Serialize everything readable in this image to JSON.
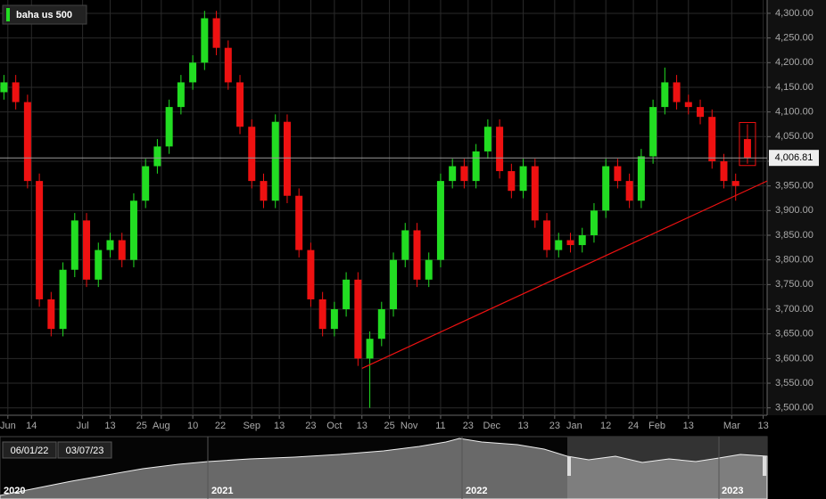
{
  "chart_data": {
    "type": "candlestick",
    "legend": "baha us 500",
    "up_color": "#22dd22",
    "down_color": "#ee1111",
    "x": [
      1,
      4,
      7,
      10,
      13,
      16,
      19,
      22,
      25,
      28,
      31,
      34,
      37,
      40,
      43,
      46,
      49,
      52,
      55,
      58,
      61,
      64,
      67,
      70,
      73,
      76,
      79,
      82,
      85,
      88,
      91,
      94,
      97,
      100,
      103,
      106,
      109,
      112,
      115,
      118,
      121,
      124,
      127,
      130,
      133,
      136,
      139,
      142,
      145,
      148,
      151,
      154,
      157,
      160,
      163,
      166,
      169,
      172,
      175,
      178,
      181,
      184,
      187,
      190
    ],
    "series": [
      {
        "name": "baha us 500",
        "open": [
          4140,
          4160,
          4120,
          3960,
          3720,
          3660,
          3780,
          3880,
          3760,
          3820,
          3840,
          3800,
          3920,
          3990,
          4030,
          4110,
          4160,
          4200,
          4290,
          4230,
          4160,
          4070,
          3960,
          3920,
          4080,
          3930,
          3820,
          3720,
          3660,
          3700,
          3760,
          3600,
          3640,
          3700,
          3800,
          3860,
          3760,
          3800,
          3960,
          3990,
          3960,
          4020,
          4070,
          3980,
          3940,
          3990,
          3880,
          3820,
          3840,
          3830,
          3850,
          3900,
          3990,
          3960,
          3920,
          4010,
          4110,
          4160,
          4120,
          4110,
          4090,
          4000,
          3960,
          4045
        ],
        "high": [
          4175,
          4175,
          4135,
          3975,
          3735,
          3795,
          3895,
          3895,
          3835,
          3855,
          3855,
          3935,
          4005,
          4045,
          4125,
          4175,
          4215,
          4305,
          4305,
          4245,
          4175,
          4085,
          3975,
          4095,
          4095,
          3945,
          3835,
          3735,
          3715,
          3775,
          3775,
          3655,
          3715,
          3815,
          3875,
          3875,
          3815,
          3975,
          4005,
          4005,
          4035,
          4085,
          4085,
          3995,
          4005,
          4005,
          3895,
          3855,
          3855,
          3865,
          3915,
          4005,
          4005,
          3975,
          4025,
          4125,
          4190,
          4175,
          4135,
          4125,
          4105,
          4015,
          3975,
          4075
        ],
        "low": [
          4125,
          4105,
          3945,
          3705,
          3645,
          3645,
          3765,
          3745,
          3745,
          3805,
          3785,
          3785,
          3905,
          3975,
          4015,
          4095,
          4145,
          4185,
          4215,
          4145,
          4055,
          3945,
          3905,
          3905,
          3915,
          3805,
          3705,
          3645,
          3645,
          3685,
          3585,
          3500,
          3625,
          3685,
          3785,
          3745,
          3745,
          3785,
          3945,
          3945,
          3945,
          4005,
          3965,
          3925,
          3925,
          3865,
          3805,
          3805,
          3815,
          3815,
          3835,
          3885,
          3945,
          3905,
          3905,
          3995,
          4095,
          4105,
          4095,
          4075,
          3985,
          3945,
          3920,
          3995
        ],
        "close": [
          4160,
          4120,
          3960,
          3720,
          3660,
          3780,
          3880,
          3760,
          3820,
          3840,
          3800,
          3920,
          3990,
          4030,
          4110,
          4160,
          4200,
          4290,
          4230,
          4160,
          4070,
          3960,
          3920,
          4080,
          3930,
          3820,
          3720,
          3660,
          3700,
          3760,
          3600,
          3640,
          3700,
          3800,
          3860,
          3760,
          3800,
          3960,
          3990,
          3960,
          4020,
          4070,
          3980,
          3940,
          3990,
          3880,
          3820,
          3840,
          3830,
          3850,
          3900,
          3990,
          3960,
          3920,
          4010,
          4110,
          4160,
          4120,
          4110,
          4090,
          4000,
          3960,
          3950,
          4007
        ]
      }
    ],
    "trendline": {
      "color": "#ee1111",
      "x": [
        92,
        195
      ],
      "y": [
        3580,
        3960
      ]
    },
    "last_price": {
      "value": 4006.81,
      "label": "4,006.81"
    },
    "xlim": [
      0,
      195
    ],
    "ylim": [
      3485,
      4327
    ],
    "grid": true,
    "xticks": [
      {
        "value": 2,
        "label": "Jun"
      },
      {
        "value": 8,
        "label": "14"
      },
      {
        "value": 21,
        "label": "Jul"
      },
      {
        "value": 28,
        "label": "13"
      },
      {
        "value": 36,
        "label": "25"
      },
      {
        "value": 41,
        "label": "Aug"
      },
      {
        "value": 49,
        "label": "10"
      },
      {
        "value": 56,
        "label": "22"
      },
      {
        "value": 64,
        "label": "Sep"
      },
      {
        "value": 71,
        "label": "13"
      },
      {
        "value": 79,
        "label": "23"
      },
      {
        "value": 85,
        "label": "Oct"
      },
      {
        "value": 92,
        "label": "13"
      },
      {
        "value": 99,
        "label": "25"
      },
      {
        "value": 104,
        "label": "Nov"
      },
      {
        "value": 112,
        "label": "11"
      },
      {
        "value": 119,
        "label": "23"
      },
      {
        "value": 125,
        "label": "Dec"
      },
      {
        "value": 133,
        "label": "13"
      },
      {
        "value": 141,
        "label": "23"
      },
      {
        "value": 146,
        "label": "Jan"
      },
      {
        "value": 154,
        "label": "12"
      },
      {
        "value": 161,
        "label": "24"
      },
      {
        "value": 167,
        "label": "Feb"
      },
      {
        "value": 175,
        "label": "13"
      },
      {
        "value": 186,
        "label": "Mar"
      },
      {
        "value": 194,
        "label": "13"
      }
    ],
    "yticks": [
      {
        "value": 3500,
        "label": "3,500.00"
      },
      {
        "value": 3550,
        "label": "3,550.00"
      },
      {
        "value": 3600,
        "label": "3,600.00"
      },
      {
        "value": 3650,
        "label": "3,650.00"
      },
      {
        "value": 3700,
        "label": "3,700.00"
      },
      {
        "value": 3750,
        "label": "3,750.00"
      },
      {
        "value": 3800,
        "label": "3,800.00"
      },
      {
        "value": 3850,
        "label": "3,850.00"
      },
      {
        "value": 3900,
        "label": "3,900.00"
      },
      {
        "value": 3950,
        "label": "3,950.00"
      },
      {
        "value": 4000,
        "label": "4,000.00"
      },
      {
        "value": 4050,
        "label": "4,050.00"
      },
      {
        "value": 4100,
        "label": "4,100.00"
      },
      {
        "value": 4150,
        "label": "4,150.00"
      },
      {
        "value": 4200,
        "label": "4,200.00"
      },
      {
        "value": 4250,
        "label": "4,250.00"
      },
      {
        "value": 4300,
        "label": "4,300.00"
      }
    ]
  },
  "navigator": {
    "from": "06/01/22",
    "to": "03/07/23",
    "years": [
      "2020",
      "2021",
      "2022",
      "2023"
    ]
  }
}
